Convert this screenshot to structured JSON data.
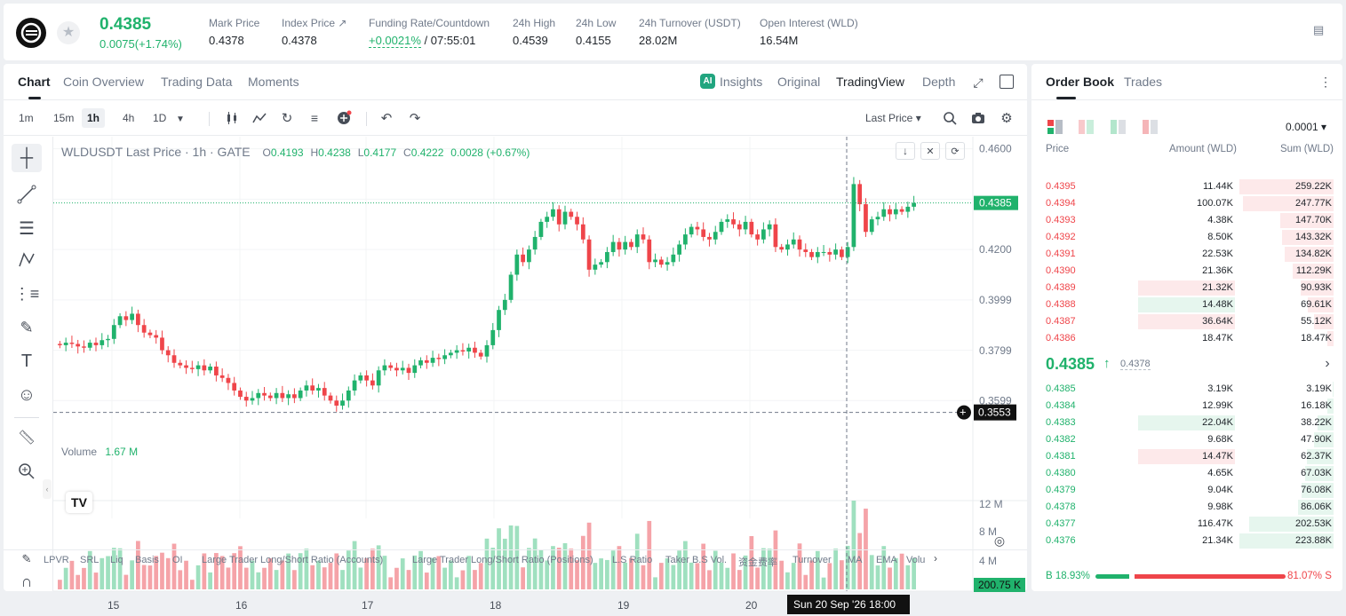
{
  "ticker": {
    "price": "0.4385",
    "change": "0.0075(+1.74%)",
    "stats": [
      {
        "label": "Mark Price",
        "value": "0.4378"
      },
      {
        "label": "Index Price ↗",
        "value": "0.4378"
      },
      {
        "label": "Funding Rate/Countdown",
        "value_green": "+0.0021%",
        "value": " / 07:55:01"
      },
      {
        "label": "24h High",
        "value": "0.4539"
      },
      {
        "label": "24h Low",
        "value": "0.4155"
      },
      {
        "label": "24h Turnover (USDT)",
        "value": "28.02M"
      },
      {
        "label": "Open Interest (WLD)",
        "value": "16.54M"
      }
    ]
  },
  "chart_tabs": [
    "Chart",
    "Coin Overview",
    "Trading Data",
    "Moments"
  ],
  "view_tabs": [
    "Insights",
    "Original",
    "TradingView",
    "Depth"
  ],
  "intervals": [
    "1m",
    "15m",
    "1h",
    "4h",
    "1D"
  ],
  "price_type": "Last Price",
  "legend": {
    "symbol": "WLDUSDT Last Price · 1h · GATE",
    "o": "0.4193",
    "h": "0.4238",
    "l": "0.4177",
    "c": "0.4222",
    "chg": "0.0028 (+0.67%)"
  },
  "volume_label": "Volume",
  "volume_value": "1.67 M",
  "price_axis": [
    "0.4600",
    "0.4200",
    "0.3999",
    "0.3799",
    "0.3599"
  ],
  "current_price_tag": "0.4385",
  "cross_price_tag": "0.3553",
  "vol_axis": [
    "12 M",
    "8 M",
    "4 M"
  ],
  "vol_tag": "200.75 K",
  "time_axis": [
    "15",
    "16",
    "17",
    "18",
    "19",
    "20"
  ],
  "cross_time": "Sun 20 Sep '26   18:00",
  "indicators": [
    "LPVR",
    "SRL",
    "Liq",
    "Basis",
    "OI",
    "Large Trader Long/Short Ratio (Accounts)",
    "Large Trader Long/Short Ratio (Positions)",
    "L.S Ratio",
    "Taker B.S Vol.",
    "资金费率",
    "Turnover",
    "MA",
    "EMA",
    "Volu"
  ],
  "orderbook": {
    "tabs": [
      "Order Book",
      "Trades"
    ],
    "precision": "0.0001",
    "headers": [
      "Price",
      "Amount (WLD)",
      "Sum (WLD)"
    ],
    "asks": [
      {
        "price": "0.4395",
        "amount": "11.44K",
        "sum": "259.22K",
        "depth": 1.0,
        "hl": 0
      },
      {
        "price": "0.4394",
        "amount": "100.07K",
        "sum": "247.77K",
        "depth": 0.96,
        "hl": 0
      },
      {
        "price": "0.4393",
        "amount": "4.38K",
        "sum": "147.70K",
        "depth": 0.57,
        "hl": 0
      },
      {
        "price": "0.4392",
        "amount": "8.50K",
        "sum": "143.32K",
        "depth": 0.55,
        "hl": 0
      },
      {
        "price": "0.4391",
        "amount": "22.53K",
        "sum": "134.82K",
        "depth": 0.52,
        "hl": 0
      },
      {
        "price": "0.4390",
        "amount": "21.36K",
        "sum": "112.29K",
        "depth": 0.43,
        "hl": 0
      },
      {
        "price": "0.4389",
        "amount": "21.32K",
        "sum": "90.93K",
        "depth": 0.35,
        "hl": "red"
      },
      {
        "price": "0.4388",
        "amount": "14.48K",
        "sum": "69.61K",
        "depth": 0.27,
        "hl": "green"
      },
      {
        "price": "0.4387",
        "amount": "36.64K",
        "sum": "55.12K",
        "depth": 0.21,
        "hl": "red"
      },
      {
        "price": "0.4386",
        "amount": "18.47K",
        "sum": "18.47K",
        "depth": 0.07,
        "hl": 0
      }
    ],
    "mid_price": "0.4385",
    "mid_mark": "0.4378",
    "bids": [
      {
        "price": "0.4385",
        "amount": "3.19K",
        "sum": "3.19K",
        "depth": 0.01,
        "hl": 0
      },
      {
        "price": "0.4384",
        "amount": "12.99K",
        "sum": "16.18K",
        "depth": 0.07,
        "hl": 0
      },
      {
        "price": "0.4383",
        "amount": "22.04K",
        "sum": "38.22K",
        "depth": 0.17,
        "hl": "green"
      },
      {
        "price": "0.4382",
        "amount": "9.68K",
        "sum": "47.90K",
        "depth": 0.21,
        "hl": 0
      },
      {
        "price": "0.4381",
        "amount": "14.47K",
        "sum": "62.37K",
        "depth": 0.28,
        "hl": "red"
      },
      {
        "price": "0.4380",
        "amount": "4.65K",
        "sum": "67.03K",
        "depth": 0.3,
        "hl": 0
      },
      {
        "price": "0.4379",
        "amount": "9.04K",
        "sum": "76.08K",
        "depth": 0.34,
        "hl": 0
      },
      {
        "price": "0.4378",
        "amount": "9.98K",
        "sum": "86.06K",
        "depth": 0.38,
        "hl": 0
      },
      {
        "price": "0.4377",
        "amount": "116.47K",
        "sum": "202.53K",
        "depth": 0.9,
        "hl": 0
      },
      {
        "price": "0.4376",
        "amount": "21.34K",
        "sum": "223.88K",
        "depth": 1.0,
        "hl": 0
      }
    ],
    "buy_pct": "B 18.93%",
    "sell_pct": "81.07% S",
    "buy_ratio": 0.1893
  },
  "chart_data": {
    "type": "candlestick",
    "symbol": "WLDUSDT",
    "interval": "1h",
    "ylim": [
      0.352,
      0.462
    ],
    "x_ticks": [
      "15",
      "16",
      "17",
      "18",
      "19",
      "20"
    ],
    "closes": [
      0.382,
      0.383,
      0.3825,
      0.3815,
      0.381,
      0.383,
      0.382,
      0.384,
      0.3845,
      0.39,
      0.3935,
      0.392,
      0.3945,
      0.39,
      0.387,
      0.386,
      0.385,
      0.38,
      0.378,
      0.375,
      0.374,
      0.373,
      0.3725,
      0.374,
      0.372,
      0.3735,
      0.37,
      0.369,
      0.367,
      0.364,
      0.3615,
      0.36,
      0.361,
      0.363,
      0.362,
      0.361,
      0.363,
      0.361,
      0.3625,
      0.361,
      0.364,
      0.366,
      0.364,
      0.365,
      0.362,
      0.36,
      0.358,
      0.36,
      0.364,
      0.368,
      0.37,
      0.368,
      0.366,
      0.372,
      0.374,
      0.373,
      0.372,
      0.373,
      0.371,
      0.374,
      0.376,
      0.375,
      0.377,
      0.3765,
      0.378,
      0.379,
      0.38,
      0.3795,
      0.381,
      0.379,
      0.3775,
      0.382,
      0.388,
      0.396,
      0.4,
      0.41,
      0.418,
      0.415,
      0.42,
      0.425,
      0.431,
      0.433,
      0.436,
      0.43,
      0.435,
      0.433,
      0.43,
      0.424,
      0.412,
      0.414,
      0.415,
      0.419,
      0.423,
      0.42,
      0.423,
      0.421,
      0.426,
      0.424,
      0.415,
      0.416,
      0.414,
      0.415,
      0.418,
      0.422,
      0.426,
      0.429,
      0.428,
      0.425,
      0.424,
      0.427,
      0.431,
      0.432,
      0.43,
      0.428,
      0.431,
      0.426,
      0.424,
      0.428,
      0.43,
      0.421,
      0.42,
      0.422,
      0.424,
      0.42,
      0.419,
      0.417,
      0.419,
      0.419,
      0.418,
      0.42,
      0.417,
      0.421,
      0.446,
      0.438,
      0.427,
      0.432,
      0.433,
      0.436,
      0.434,
      0.436,
      0.435,
      0.437,
      0.4385
    ],
    "volume_max_label": "12 M"
  }
}
